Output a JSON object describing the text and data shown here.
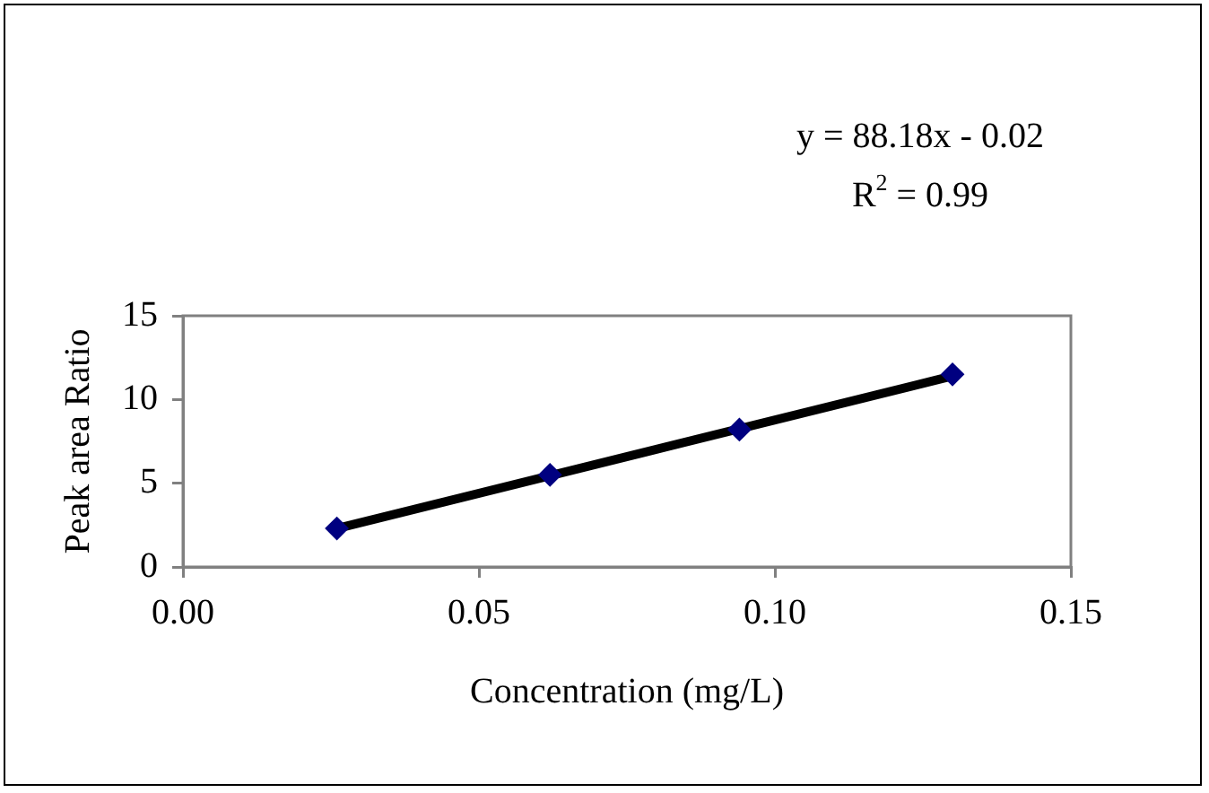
{
  "chart_data": {
    "type": "scatter",
    "xlabel": "Concentration (mg/L)",
    "ylabel": "Peak area Ratio",
    "x": [
      0.026,
      0.062,
      0.094,
      0.13
    ],
    "series": [
      {
        "type": "scatter",
        "color": "#000080",
        "marker": "diamond",
        "values": [
          2.3,
          5.5,
          8.2,
          11.5
        ]
      },
      {
        "type": "line",
        "color": "#000000",
        "marker": "none",
        "x": [
          0.026,
          0.13
        ],
        "values": [
          2.3,
          11.4
        ]
      }
    ],
    "xlim": [
      0,
      0.15
    ],
    "xticks": [
      {
        "value": 0,
        "label": "0.00"
      },
      {
        "value": 0.05,
        "label": "0.05"
      },
      {
        "value": 0.1,
        "label": "0.10"
      },
      {
        "value": 0.15,
        "label": "0.15"
      }
    ],
    "ylim": [
      0,
      15
    ],
    "yticks": [
      0,
      5,
      10,
      15
    ],
    "grid": false,
    "legend": false,
    "annotations": [
      "y = 88.18x - 0.02",
      "R$^{2}$ = 0.99"
    ]
  }
}
